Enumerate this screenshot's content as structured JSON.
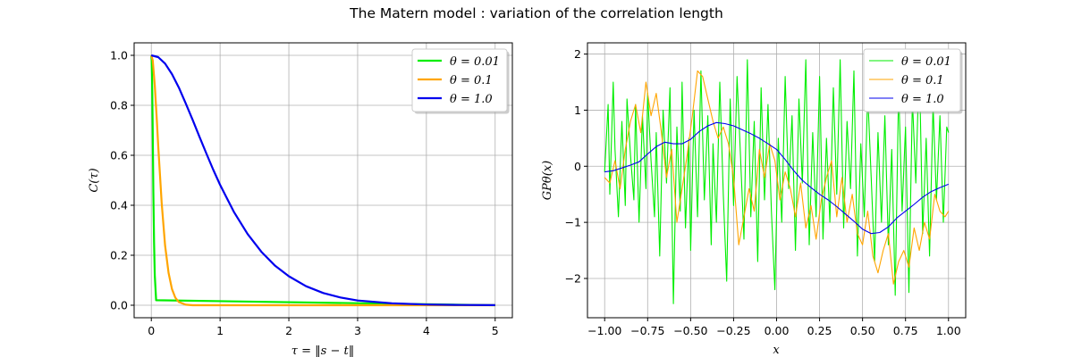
{
  "figure": {
    "title": "The Matern model : variation of the correlation length"
  },
  "chart_data": [
    {
      "type": "line",
      "xlabel": "τ = ‖s − t‖",
      "ylabel": "C(τ)",
      "xlim": [
        -0.25,
        5.25
      ],
      "ylim": [
        -0.05,
        1.05
      ],
      "xticks": [
        0,
        1,
        2,
        3,
        4,
        5
      ],
      "xtick_labels": [
        "0",
        "1",
        "2",
        "3",
        "4",
        "5"
      ],
      "yticks": [
        0.0,
        0.2,
        0.4,
        0.6,
        0.8,
        1.0
      ],
      "ytick_labels": [
        "0.0",
        "0.2",
        "0.4",
        "0.6",
        "0.8",
        "1.0"
      ],
      "grid": true,
      "legend_position": "top-right",
      "series": [
        {
          "name": "θ = 0.01",
          "color": "#00ee00",
          "x": [
            0,
            0.005,
            0.01,
            0.015,
            0.02,
            0.03,
            0.04,
            0.05,
            0.07,
            5
          ],
          "y": [
            1.0,
            0.98,
            0.92,
            0.82,
            0.7,
            0.45,
            0.25,
            0.12,
            0.02,
            0.0
          ]
        },
        {
          "name": "θ = 0.1",
          "color": "#ffa500",
          "x": [
            0,
            0.02,
            0.05,
            0.08,
            0.1,
            0.15,
            0.2,
            0.25,
            0.3,
            0.35,
            0.4,
            0.5,
            0.6,
            5
          ],
          "y": [
            1.0,
            0.98,
            0.88,
            0.74,
            0.64,
            0.41,
            0.24,
            0.13,
            0.065,
            0.03,
            0.013,
            0.002,
            0.0,
            0.0
          ]
        },
        {
          "name": "θ = 1.0",
          "color": "#0000ee",
          "x": [
            0,
            0.1,
            0.2,
            0.3,
            0.4,
            0.5,
            0.6,
            0.7,
            0.8,
            0.9,
            1.0,
            1.2,
            1.4,
            1.6,
            1.8,
            2.0,
            2.25,
            2.5,
            2.75,
            3.0,
            3.5,
            4.0,
            4.5,
            5.0
          ],
          "y": [
            1.0,
            0.993,
            0.967,
            0.925,
            0.871,
            0.808,
            0.742,
            0.674,
            0.607,
            0.543,
            0.482,
            0.374,
            0.285,
            0.214,
            0.158,
            0.116,
            0.076,
            0.049,
            0.031,
            0.019,
            0.0075,
            0.0028,
            0.001,
            0.0004
          ]
        }
      ]
    },
    {
      "type": "line",
      "xlabel": "x",
      "ylabel": "GPθ(x)",
      "xlim": [
        -1.1,
        1.1
      ],
      "ylim": [
        -2.7,
        2.2
      ],
      "xticks": [
        -1.0,
        -0.75,
        -0.5,
        -0.25,
        0.0,
        0.25,
        0.5,
        0.75,
        1.0
      ],
      "xtick_labels": [
        "−1.00",
        "−0.75",
        "−0.50",
        "−0.25",
        "0.00",
        "0.25",
        "0.50",
        "0.75",
        "1.00"
      ],
      "yticks": [
        -2,
        -1,
        0,
        1,
        2
      ],
      "ytick_labels": [
        "−2",
        "−1",
        "0",
        "1",
        "2"
      ],
      "grid": true,
      "legend_position": "top-right",
      "series": [
        {
          "name": "θ = 0.01",
          "color": "#00ee00",
          "x": [
            -1.0,
            -0.98,
            -0.97,
            -0.95,
            -0.94,
            -0.92,
            -0.9,
            -0.88,
            -0.87,
            -0.85,
            -0.83,
            -0.82,
            -0.8,
            -0.78,
            -0.76,
            -0.75,
            -0.73,
            -0.71,
            -0.7,
            -0.68,
            -0.66,
            -0.64,
            -0.62,
            -0.6,
            -0.58,
            -0.56,
            -0.55,
            -0.53,
            -0.51,
            -0.5,
            -0.48,
            -0.46,
            -0.44,
            -0.42,
            -0.4,
            -0.38,
            -0.37,
            -0.35,
            -0.33,
            -0.31,
            -0.29,
            -0.27,
            -0.25,
            -0.23,
            -0.21,
            -0.19,
            -0.17,
            -0.15,
            -0.13,
            -0.11,
            -0.09,
            -0.07,
            -0.05,
            -0.03,
            -0.01,
            0.01,
            0.03,
            0.05,
            0.07,
            0.09,
            0.11,
            0.13,
            0.15,
            0.17,
            0.19,
            0.21,
            0.23,
            0.25,
            0.27,
            0.29,
            0.31,
            0.33,
            0.35,
            0.37,
            0.39,
            0.41,
            0.43,
            0.45,
            0.47,
            0.49,
            0.51,
            0.53,
            0.55,
            0.57,
            0.59,
            0.61,
            0.63,
            0.65,
            0.67,
            0.69,
            0.71,
            0.73,
            0.75,
            0.77,
            0.79,
            0.81,
            0.83,
            0.85,
            0.87,
            0.89,
            0.91,
            0.93,
            0.95,
            0.97,
            0.99,
            1.0
          ],
          "y": [
            -0.1,
            1.1,
            -0.5,
            1.5,
            0.3,
            -0.9,
            0.8,
            -0.7,
            1.2,
            0.2,
            -0.6,
            1.1,
            -1.0,
            0.9,
            -0.4,
            1.3,
            0.1,
            -0.9,
            0.6,
            -1.6,
            1.0,
            -0.3,
            1.4,
            -2.45,
            0.7,
            -0.8,
            1.5,
            -1.1,
            0.5,
            -1.5,
            1.0,
            -0.9,
            1.7,
            -0.6,
            0.9,
            -1.4,
            0.4,
            -1.0,
            1.5,
            -0.5,
            -2.05,
            1.2,
            -0.7,
            1.6,
            0.2,
            -1.3,
            1.9,
            -0.9,
            0.8,
            -1.7,
            1.4,
            -0.6,
            1.1,
            -0.8,
            -2.2,
            0.5,
            -1.0,
            1.6,
            -0.4,
            0.9,
            -1.5,
            1.2,
            -0.3,
            1.9,
            -1.4,
            0.6,
            -0.9,
            1.6,
            -1.3,
            0.5,
            -1.0,
            1.4,
            -0.5,
            1.9,
            -1.1,
            0.8,
            -0.4,
            1.7,
            -1.6,
            0.4,
            -0.9,
            1.3,
            -0.2,
            -1.7,
            0.6,
            -1.0,
            0.9,
            -1.4,
            0.3,
            -2.3,
            1.4,
            -0.8,
            0.7,
            -2.25,
            1.2,
            -0.3,
            1.9,
            -1.2,
            0.5,
            -1.6,
            1.1,
            -0.6,
            0.9,
            -1.0,
            0.7,
            0.6
          ]
        },
        {
          "name": "θ = 0.1",
          "color": "#ffa500",
          "x": [
            -1.0,
            -0.97,
            -0.94,
            -0.91,
            -0.88,
            -0.85,
            -0.82,
            -0.79,
            -0.76,
            -0.73,
            -0.7,
            -0.67,
            -0.64,
            -0.61,
            -0.58,
            -0.55,
            -0.52,
            -0.49,
            -0.46,
            -0.43,
            -0.4,
            -0.37,
            -0.34,
            -0.31,
            -0.28,
            -0.25,
            -0.22,
            -0.19,
            -0.16,
            -0.13,
            -0.1,
            -0.07,
            -0.04,
            -0.01,
            0.02,
            0.05,
            0.08,
            0.11,
            0.14,
            0.17,
            0.2,
            0.23,
            0.26,
            0.29,
            0.32,
            0.35,
            0.38,
            0.41,
            0.44,
            0.47,
            0.5,
            0.53,
            0.56,
            0.59,
            0.62,
            0.65,
            0.68,
            0.71,
            0.74,
            0.77,
            0.8,
            0.83,
            0.86,
            0.89,
            0.92,
            0.95,
            0.98,
            1.0
          ],
          "y": [
            -0.2,
            -0.3,
            0.1,
            -0.4,
            0.3,
            0.8,
            1.1,
            0.6,
            1.5,
            0.9,
            1.3,
            0.6,
            -0.2,
            0.3,
            -1.0,
            -0.4,
            0.2,
            0.9,
            1.7,
            1.6,
            1.2,
            0.8,
            0.5,
            0.7,
            0.4,
            -0.2,
            -1.4,
            -0.9,
            -0.4,
            -0.8,
            0.3,
            -0.2,
            0.4,
            0.1,
            -0.6,
            -0.1,
            -0.4,
            -0.9,
            -0.3,
            -1.1,
            -0.7,
            -1.3,
            -0.6,
            -0.2,
            0.1,
            -0.9,
            -0.2,
            -1.0,
            -0.5,
            -1.2,
            -1.4,
            -0.8,
            -1.6,
            -1.9,
            -1.5,
            -1.2,
            -2.1,
            -1.7,
            -1.5,
            -1.8,
            -1.1,
            -1.5,
            -1.0,
            -1.3,
            -0.5,
            -0.8,
            -0.9,
            -0.8
          ]
        },
        {
          "name": "θ = 1.0",
          "color": "#0000ee",
          "x": [
            -1.0,
            -0.95,
            -0.9,
            -0.85,
            -0.8,
            -0.75,
            -0.7,
            -0.65,
            -0.6,
            -0.55,
            -0.5,
            -0.45,
            -0.4,
            -0.35,
            -0.3,
            -0.25,
            -0.2,
            -0.15,
            -0.1,
            -0.05,
            0.0,
            0.05,
            0.1,
            0.15,
            0.2,
            0.25,
            0.3,
            0.35,
            0.4,
            0.45,
            0.5,
            0.55,
            0.6,
            0.65,
            0.7,
            0.75,
            0.8,
            0.85,
            0.9,
            0.95,
            1.0
          ],
          "y": [
            -0.1,
            -0.08,
            -0.03,
            0.02,
            0.08,
            0.22,
            0.35,
            0.43,
            0.4,
            0.4,
            0.48,
            0.62,
            0.72,
            0.78,
            0.76,
            0.72,
            0.65,
            0.58,
            0.5,
            0.4,
            0.3,
            0.12,
            -0.08,
            -0.25,
            -0.38,
            -0.5,
            -0.6,
            -0.72,
            -0.85,
            -0.98,
            -1.12,
            -1.2,
            -1.18,
            -1.08,
            -0.92,
            -0.8,
            -0.68,
            -0.55,
            -0.45,
            -0.38,
            -0.32
          ]
        }
      ]
    }
  ]
}
